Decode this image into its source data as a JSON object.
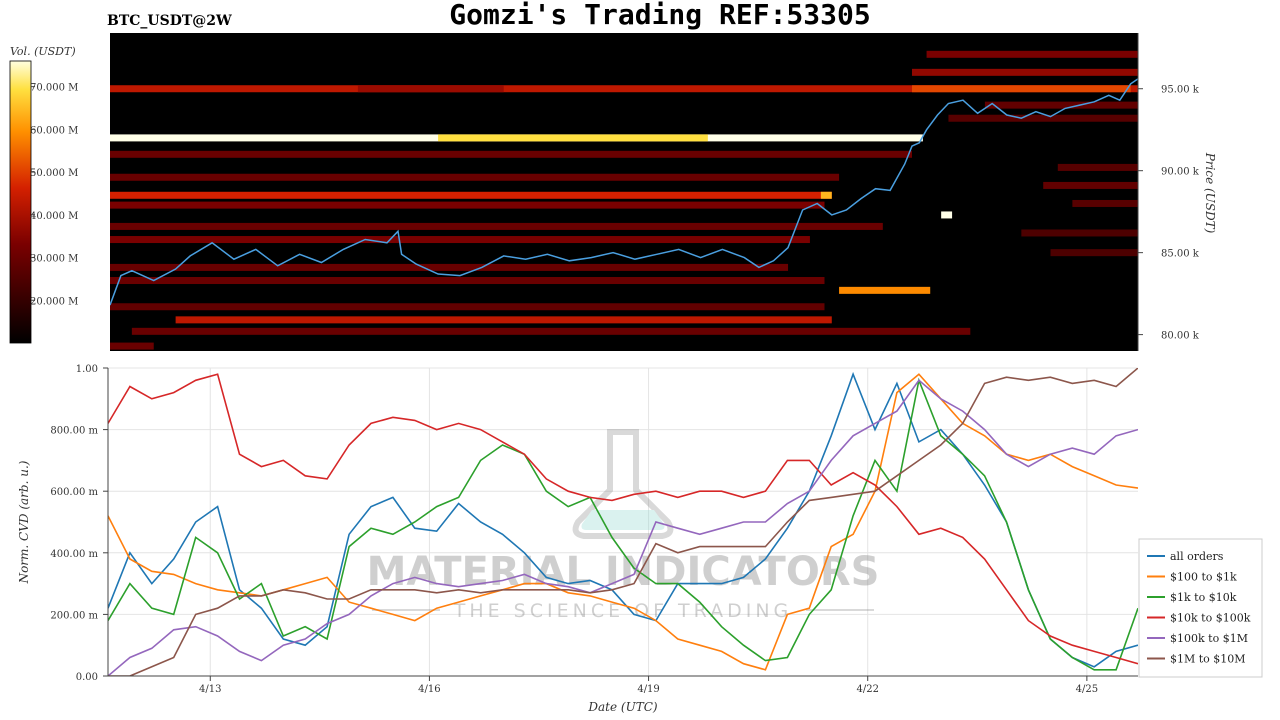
{
  "header": {
    "pair": "BTC_USDT@2W",
    "title": "Gomzi's Trading REF:53305"
  },
  "watermark": {
    "main": "MATERIAL INDICATORS",
    "sub": "THE SCIENCE OF TRADING"
  },
  "colors": {
    "heatmap_bg": "#000000",
    "price_line": "#4a9fe0",
    "series": [
      "#1f77b4",
      "#ff7f0e",
      "#2ca02c",
      "#d62728",
      "#9467bd",
      "#8c564b"
    ]
  },
  "chart_data": [
    {
      "type": "heatmap",
      "colorbar": {
        "label": "Vol. (USDT)",
        "ticks": [
          "70.000 M",
          "60.000 M",
          "50.000 M",
          "40.000 M",
          "30.000 M",
          "20.000 M"
        ],
        "tick_values": [
          70,
          60,
          50,
          40,
          30,
          20
        ],
        "range": [
          10,
          76
        ]
      },
      "ylabel": "Price (USDT)",
      "y_ticks": [
        "95.00 k",
        "90.00 k",
        "85.00 k",
        "80.00 k"
      ],
      "y_tick_values": [
        95,
        90,
        85,
        80
      ],
      "ylim": [
        79.0,
        98.4
      ],
      "xlim": [
        0,
        14.1
      ],
      "bands": [
        {
          "price": 92.0,
          "start": 0.0,
          "end": 11.15,
          "level": 1.0
        },
        {
          "price": 92.0,
          "start": 4.5,
          "end": 8.2,
          "level": 0.9
        },
        {
          "price": 95.0,
          "start": 0.0,
          "end": 14.1,
          "level": 0.5
        },
        {
          "price": 95.0,
          "start": 3.4,
          "end": 5.4,
          "level": 0.42
        },
        {
          "price": 95.0,
          "start": 11.0,
          "end": 14.0,
          "level": 0.62
        },
        {
          "price": 88.5,
          "start": 0.0,
          "end": 9.9,
          "level": 0.55
        },
        {
          "price": 88.5,
          "start": 9.75,
          "end": 9.9,
          "level": 0.82
        },
        {
          "price": 82.7,
          "start": 10.0,
          "end": 11.25,
          "level": 0.74
        },
        {
          "price": 80.9,
          "start": 0.9,
          "end": 9.9,
          "level": 0.5
        },
        {
          "price": 87.3,
          "start": 11.4,
          "end": 11.55,
          "level": 1.0
        },
        {
          "price": 97.1,
          "start": 11.2,
          "end": 14.1,
          "level": 0.35
        },
        {
          "price": 96.0,
          "start": 11.0,
          "end": 14.1,
          "level": 0.4
        },
        {
          "price": 91.0,
          "start": 0.0,
          "end": 11.0,
          "level": 0.3
        },
        {
          "price": 89.6,
          "start": 0.0,
          "end": 10.0,
          "level": 0.3
        },
        {
          "price": 87.9,
          "start": 0.0,
          "end": 9.8,
          "level": 0.35
        },
        {
          "price": 86.6,
          "start": 0.0,
          "end": 10.6,
          "level": 0.3
        },
        {
          "price": 85.8,
          "start": 0.0,
          "end": 9.6,
          "level": 0.35
        },
        {
          "price": 84.1,
          "start": 0.0,
          "end": 9.3,
          "level": 0.3
        },
        {
          "price": 83.3,
          "start": 0.0,
          "end": 9.8,
          "level": 0.3
        },
        {
          "price": 81.7,
          "start": 0.0,
          "end": 9.8,
          "level": 0.28
        },
        {
          "price": 80.2,
          "start": 0.3,
          "end": 11.8,
          "level": 0.3
        },
        {
          "price": 79.3,
          "start": 0.0,
          "end": 0.6,
          "level": 0.3
        },
        {
          "price": 94.0,
          "start": 12.0,
          "end": 14.1,
          "level": 0.28
        },
        {
          "price": 93.2,
          "start": 11.5,
          "end": 14.1,
          "level": 0.25
        },
        {
          "price": 90.2,
          "start": 13.0,
          "end": 14.1,
          "level": 0.25
        },
        {
          "price": 89.1,
          "start": 12.8,
          "end": 14.1,
          "level": 0.28
        },
        {
          "price": 88.0,
          "start": 13.2,
          "end": 14.1,
          "level": 0.25
        },
        {
          "price": 86.2,
          "start": 12.5,
          "end": 14.1,
          "level": 0.22
        },
        {
          "price": 85.0,
          "start": 12.9,
          "end": 14.1,
          "level": 0.22
        }
      ],
      "price_series": {
        "x": [
          0.0,
          0.15,
          0.3,
          0.6,
          0.9,
          1.1,
          1.4,
          1.7,
          2.0,
          2.3,
          2.6,
          2.9,
          3.2,
          3.5,
          3.8,
          3.95,
          4.0,
          4.2,
          4.5,
          4.8,
          5.1,
          5.4,
          5.7,
          6.0,
          6.3,
          6.6,
          6.9,
          7.2,
          7.5,
          7.8,
          8.1,
          8.4,
          8.7,
          8.9,
          9.1,
          9.3,
          9.5,
          9.7,
          9.9,
          10.1,
          10.3,
          10.5,
          10.7,
          10.9,
          11.0,
          11.1,
          11.2,
          11.35,
          11.5,
          11.7,
          11.9,
          12.1,
          12.3,
          12.5,
          12.7,
          12.9,
          13.1,
          13.3,
          13.5,
          13.7,
          13.85,
          14.0,
          14.1
        ],
        "y": [
          81.8,
          83.6,
          83.9,
          83.3,
          84.0,
          84.8,
          85.6,
          84.6,
          85.2,
          84.2,
          84.9,
          84.4,
          85.2,
          85.8,
          85.6,
          86.3,
          84.9,
          84.3,
          83.7,
          83.6,
          84.1,
          84.8,
          84.6,
          84.9,
          84.5,
          84.7,
          85.0,
          84.6,
          84.9,
          85.2,
          84.7,
          85.2,
          84.7,
          84.1,
          84.5,
          85.3,
          87.6,
          88.0,
          87.3,
          87.6,
          88.3,
          88.9,
          88.8,
          90.4,
          91.5,
          91.7,
          92.5,
          93.4,
          94.1,
          94.3,
          93.5,
          94.1,
          93.4,
          93.2,
          93.6,
          93.3,
          93.8,
          94.0,
          94.2,
          94.6,
          94.3,
          95.3,
          95.6
        ]
      }
    },
    {
      "type": "line",
      "xlabel": "Date (UTC)",
      "ylabel": "Norm. CVD (arb. u.)",
      "x_ticks": [
        "4/13",
        "4/16",
        "4/19",
        "4/22",
        "4/25"
      ],
      "x_tick_values": [
        1.4,
        4.4,
        7.4,
        10.4,
        13.4
      ],
      "y_ticks": [
        "1.00",
        "800.00 m",
        "600.00 m",
        "400.00 m",
        "200.00 m",
        "0.00"
      ],
      "y_tick_values": [
        1.0,
        0.8,
        0.6,
        0.4,
        0.2,
        0.0
      ],
      "ylim": [
        0,
        1
      ],
      "xlim": [
        0,
        14.1
      ],
      "legend_position": "bottom-right",
      "x": [
        0.0,
        0.3,
        0.6,
        0.9,
        1.2,
        1.5,
        1.8,
        2.1,
        2.4,
        2.7,
        3.0,
        3.3,
        3.6,
        3.9,
        4.2,
        4.5,
        4.8,
        5.1,
        5.4,
        5.7,
        6.0,
        6.3,
        6.6,
        6.9,
        7.2,
        7.5,
        7.8,
        8.1,
        8.4,
        8.7,
        9.0,
        9.3,
        9.6,
        9.9,
        10.2,
        10.5,
        10.8,
        11.1,
        11.4,
        11.7,
        12.0,
        12.3,
        12.6,
        12.9,
        13.2,
        13.5,
        13.8,
        14.1
      ],
      "series": [
        {
          "name": "all orders",
          "values": [
            0.22,
            0.4,
            0.3,
            0.38,
            0.5,
            0.55,
            0.28,
            0.22,
            0.12,
            0.1,
            0.16,
            0.46,
            0.55,
            0.58,
            0.48,
            0.47,
            0.56,
            0.5,
            0.46,
            0.4,
            0.32,
            0.3,
            0.31,
            0.28,
            0.2,
            0.18,
            0.3,
            0.3,
            0.3,
            0.32,
            0.38,
            0.48,
            0.6,
            0.78,
            0.98,
            0.8,
            0.95,
            0.76,
            0.8,
            0.72,
            0.62,
            0.5,
            0.28,
            0.12,
            0.06,
            0.03,
            0.08,
            0.1
          ]
        },
        {
          "name": "$100 to $1k",
          "values": [
            0.52,
            0.38,
            0.34,
            0.33,
            0.3,
            0.28,
            0.27,
            0.26,
            0.28,
            0.3,
            0.32,
            0.24,
            0.22,
            0.2,
            0.18,
            0.22,
            0.24,
            0.26,
            0.28,
            0.3,
            0.3,
            0.27,
            0.26,
            0.24,
            0.22,
            0.18,
            0.12,
            0.1,
            0.08,
            0.04,
            0.02,
            0.2,
            0.22,
            0.42,
            0.46,
            0.6,
            0.92,
            0.98,
            0.9,
            0.82,
            0.78,
            0.72,
            0.7,
            0.72,
            0.68,
            0.65,
            0.62,
            0.61
          ]
        },
        {
          "name": "$1k to $10k",
          "values": [
            0.18,
            0.3,
            0.22,
            0.2,
            0.45,
            0.4,
            0.25,
            0.3,
            0.13,
            0.16,
            0.12,
            0.42,
            0.48,
            0.46,
            0.5,
            0.55,
            0.58,
            0.7,
            0.75,
            0.72,
            0.6,
            0.55,
            0.58,
            0.45,
            0.35,
            0.3,
            0.3,
            0.24,
            0.16,
            0.1,
            0.05,
            0.06,
            0.2,
            0.28,
            0.52,
            0.7,
            0.6,
            0.96,
            0.78,
            0.72,
            0.65,
            0.5,
            0.28,
            0.12,
            0.06,
            0.02,
            0.02,
            0.22
          ]
        },
        {
          "name": "$10k to $100k",
          "values": [
            0.82,
            0.94,
            0.9,
            0.92,
            0.96,
            0.98,
            0.72,
            0.68,
            0.7,
            0.65,
            0.64,
            0.75,
            0.82,
            0.84,
            0.83,
            0.8,
            0.82,
            0.8,
            0.76,
            0.72,
            0.64,
            0.6,
            0.58,
            0.57,
            0.59,
            0.6,
            0.58,
            0.6,
            0.6,
            0.58,
            0.6,
            0.7,
            0.7,
            0.62,
            0.66,
            0.62,
            0.55,
            0.46,
            0.48,
            0.45,
            0.38,
            0.28,
            0.18,
            0.13,
            0.1,
            0.08,
            0.06,
            0.04
          ]
        },
        {
          "name": "$100k to $1M",
          "values": [
            0.0,
            0.06,
            0.09,
            0.15,
            0.16,
            0.13,
            0.08,
            0.05,
            0.1,
            0.12,
            0.17,
            0.2,
            0.26,
            0.3,
            0.32,
            0.3,
            0.29,
            0.3,
            0.31,
            0.33,
            0.3,
            0.29,
            0.27,
            0.3,
            0.33,
            0.5,
            0.48,
            0.46,
            0.48,
            0.5,
            0.5,
            0.56,
            0.6,
            0.7,
            0.78,
            0.82,
            0.86,
            0.96,
            0.9,
            0.86,
            0.8,
            0.72,
            0.68,
            0.72,
            0.74,
            0.72,
            0.78,
            0.8
          ]
        },
        {
          "name": "$1M to $10M",
          "values": [
            0.0,
            0.0,
            0.03,
            0.06,
            0.2,
            0.22,
            0.26,
            0.26,
            0.28,
            0.27,
            0.25,
            0.25,
            0.28,
            0.28,
            0.28,
            0.27,
            0.28,
            0.27,
            0.28,
            0.28,
            0.28,
            0.28,
            0.27,
            0.28,
            0.3,
            0.43,
            0.4,
            0.42,
            0.42,
            0.42,
            0.42,
            0.5,
            0.57,
            0.58,
            0.59,
            0.6,
            0.65,
            0.7,
            0.75,
            0.82,
            0.95,
            0.97,
            0.96,
            0.97,
            0.95,
            0.96,
            0.94,
            1.0
          ]
        }
      ]
    }
  ]
}
